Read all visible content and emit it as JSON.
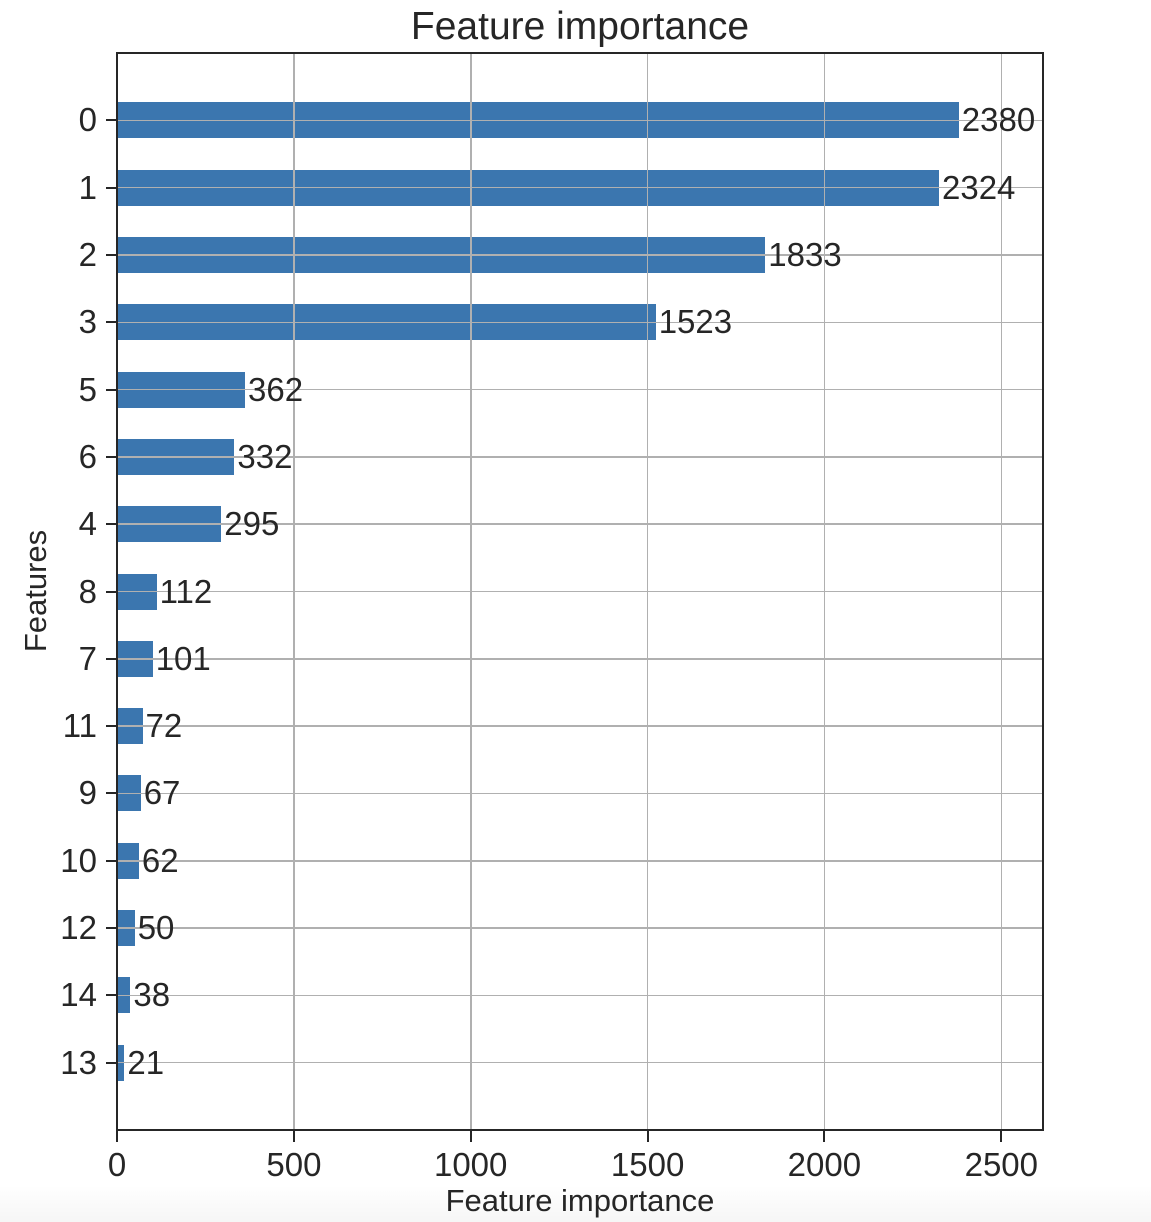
{
  "page": {
    "background": "#ffffff"
  },
  "chart_data": {
    "type": "bar",
    "orientation": "horizontal",
    "title": "Feature importance",
    "xlabel": "Feature importance",
    "ylabel": "Features",
    "categories": [
      "0",
      "1",
      "2",
      "3",
      "5",
      "6",
      "4",
      "8",
      "7",
      "11",
      "9",
      "10",
      "12",
      "14",
      "13"
    ],
    "values": [
      2380,
      2324,
      1833,
      1523,
      362,
      332,
      295,
      112,
      101,
      72,
      67,
      62,
      50,
      38,
      21
    ],
    "value_labels": [
      "2380",
      "2324",
      "1833",
      "1523",
      "362",
      "332",
      "295",
      "112",
      "101",
      "72",
      "67",
      "62",
      "50",
      "38",
      "21"
    ],
    "xticks": [
      0,
      500,
      1000,
      1500,
      2000,
      2500
    ],
    "xtick_labels": [
      "0",
      "500",
      "1000",
      "1500",
      "2000",
      "2500"
    ],
    "xlim": [
      0,
      2618
    ],
    "grid": true,
    "grid_above_bars": true,
    "legend": null,
    "colors": {
      "bar": "#3b76af",
      "grid": "#b0b0b0",
      "axis": "#262626",
      "text": "#262626"
    }
  }
}
